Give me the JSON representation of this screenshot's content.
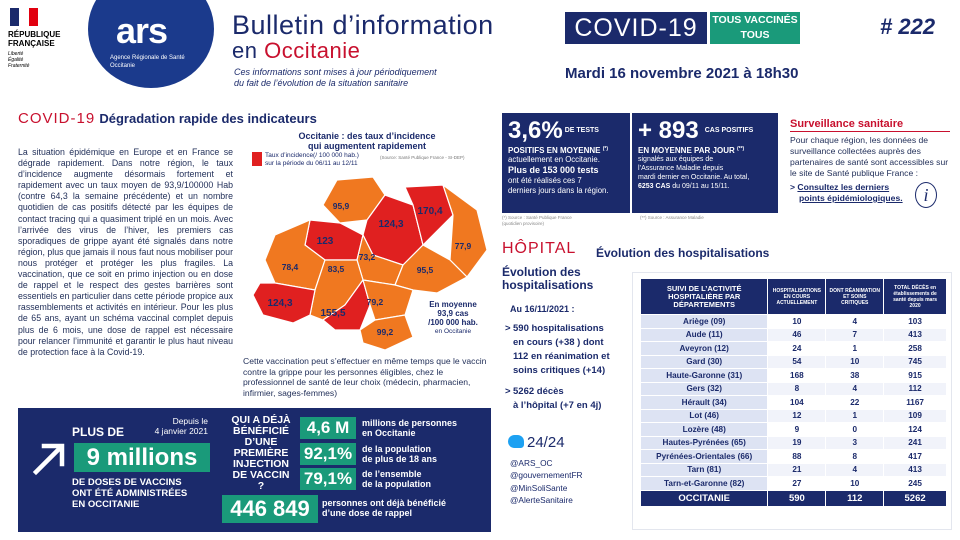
{
  "header": {
    "rf_lines": [
      "RÉPUBLIQUE",
      "FRANÇAISE",
      "Liberté",
      "Égalité",
      "Fraternité"
    ],
    "ars_logo": "ars",
    "ars_sub_lines": [
      "Agence Régionale de Santé",
      "Occitanie"
    ],
    "title": "Bulletin d’information",
    "covid_label": "COVID-19",
    "vacc_line1": "TOUS VACCINÉS",
    "vacc_line2": "TOUS PROTÉGÉS",
    "issue": "# 222",
    "region_prefix": "en",
    "region": "Occitanie",
    "note_line1": "Ces informations sont mises à jour périodiquement",
    "note_line2": "du fait de l’évolution de la situation sanitaire",
    "date": "Mardi 16 novembre 2021 à 18h30"
  },
  "left": {
    "title_covid": "COVID-19",
    "title_rest": "Dégradation rapide des indicateurs",
    "paragraph": "La situation épidémique en Europe et en France se dégrade rapidement. Dans notre région, le taux d’incidence augmente désormais fortement et rapidement avec un taux moyen de 93,9/100000 Hab (contre 64,3 la semaine précédente) et un nombre quotidien de cas positifs détecté par les équipes de contact tracing qui a quasiment triplé en un mois. Avec l’arrivée des virus de l’hiver, les premiers cas sporadiques de grippe ayant été signalés dans notre région, plus que jamais il nous faut nous mobiliser pour nous protéger et protéger les plus fragiles. La vaccination, que ce soit en primo injection ou en dose de rappel et le respect des gestes barrières sont essentiels en particulier dans cette période propice aux rassemblements et activités en intérieur. Pour les plus de 65 ans, ayant un schéma vaccinal complet depuis plus de 6 mois, une dose de rappel est nécessaire pour relancer l’immunité et garantir le plus haut niveau de protection face à la Covid-19.",
    "vacc_paragraph": "Cette vaccination peut s’effectuer en même temps que le vaccin contre la grippe pour les personnes éligibles, chez le professionnel de santé de leur choix (médecin, pharmacien, infirmier, sages-femmes)"
  },
  "map": {
    "title_line1": "Occitanie : des taux d’incidence",
    "title_line2": "qui augmentent rapidement",
    "legend_line1": "Taux d’incidence(/ 100 000 hab.)",
    "legend_line2": "sur la période du 06/11 au 12/11",
    "source": "(Source: Santé Publique France - SI-DEP)",
    "avg_line1": "En moyenne",
    "avg_line2": "93,9 cas",
    "avg_line3": "/100 000 hab.",
    "avg_line4": "en Occitanie",
    "labels": [
      "95,9",
      "124,3",
      "170,4",
      "123",
      "77,9",
      "73,2",
      "78,4",
      "83,5",
      "95,5",
      "124,3",
      "155,5",
      "79,2",
      "99,2"
    ],
    "colors": {
      "high": "#e02020",
      "mid": "#f07820",
      "low": "#f5a040"
    }
  },
  "vaccination": {
    "plus_de": "PLUS DE",
    "since_line1": "Depuis le",
    "since_line2": "4 janvier 2021",
    "nine_million": "9 millions",
    "doses_line1": "DE DOSES DE VACCINS",
    "doses_line2": "ONT ÉTÉ ADMINISTRÉES",
    "doses_line3": "EN OCCITANIE",
    "question_lines": [
      "QUI A DÉJÀ",
      "BÉNÉFICIÉ",
      "D’UNE",
      "PREMIÈRE",
      "INJECTION",
      "DE VACCIN ?"
    ],
    "stats": [
      {
        "value": "4,6 M",
        "line1": "millions de personnes",
        "line2": "en Occitanie"
      },
      {
        "value": "92,1%",
        "line1": "de la population",
        "line2": "de plus de 18 ans"
      },
      {
        "value": "79,1%",
        "line1": "de l’ensemble",
        "line2": "de la population"
      }
    ],
    "rappel_value": "446 849",
    "rappel_line1": "personnes ont déjà bénéficié",
    "rappel_line2": "d’une dose de rappel"
  },
  "kpi": {
    "tests_value": "3,6%",
    "tests_unit": "DE TESTS",
    "tests_sub": "POSITIFS EN MOYENNE",
    "tests_sub_mark": "(*)",
    "tests_line1": "actuellement en Occitanie.",
    "tests_bold1": "Plus de 153 000 tests",
    "tests_bold2": "ont été réalisés ces 7",
    "tests_bold3": "derniers jours dans la région.",
    "cases_value": "+ 893",
    "cases_unit": "CAS POSITIFS",
    "cases_sub": "EN MOYENNE PAR JOUR",
    "cases_sub_mark": "(**)",
    "cases_line1": "signalés aux équipes de",
    "cases_line2": "l’Assurance Maladie depuis",
    "cases_line3": "mardi dernier en Occitanie. Au total,",
    "cases_bold": "6253 CAS",
    "cases_line4": "du 09/11 au 15/11.",
    "src1_line1": "(*) Source : Santé Publique France",
    "src1_line2": "(quotidien provisoire)",
    "src2": "(**) Source : Assurance Maladie"
  },
  "surveillance": {
    "title": "Surveillance sanitaire",
    "text": "Pour chaque région, les données de surveillance collectées auprès des partenaires de santé sont accessibles sur le site de Santé publique France :",
    "link_prefix": ">",
    "link_line1": "Consultez les derniers",
    "link_line2": "points épidémiologiques.",
    "info_icon": "i"
  },
  "hospital": {
    "title": "HÔPITAL",
    "subtitle": "Évolution des hospitalisations",
    "evol_line1": "Évolution des",
    "evol_line2": "hospitalisations",
    "date": "Au 16/11/2021 :",
    "bullet1_lines": [
      "590 hospitalisations",
      "en cours (+38 ) dont",
      "112 en réanimation et",
      "soins critiques (+14)"
    ],
    "bullet2_lines": [
      "5262 décès",
      "à l’hôpital (+7 en 4j)"
    ]
  },
  "twitter": {
    "handle_title": "24/24",
    "links": [
      "@ARS_OC",
      "@gouvernementFR",
      "@MinSoliSante",
      "@AlerteSanitaire"
    ]
  },
  "table": {
    "headers": [
      "SUIVI DE L’ACTIVITÉ HOSPITALIÈRE PAR DÉPARTEMENTS",
      "HOSPITALISATIONS EN COURS ACTUELLEMENT",
      "DONT RÉANIMATION ET SOINS CRITIQUES",
      "TOTAL DÉCÈS en établissements de santé depuis mars 2020"
    ],
    "rows": [
      [
        "Ariège (09)",
        "10",
        "4",
        "103"
      ],
      [
        "Aude (11)",
        "46",
        "7",
        "413"
      ],
      [
        "Aveyron (12)",
        "24",
        "1",
        "258"
      ],
      [
        "Gard (30)",
        "54",
        "10",
        "745"
      ],
      [
        "Haute-Garonne (31)",
        "168",
        "38",
        "915"
      ],
      [
        "Gers (32)",
        "8",
        "4",
        "112"
      ],
      [
        "Hérault (34)",
        "104",
        "22",
        "1167"
      ],
      [
        "Lot (46)",
        "12",
        "1",
        "109"
      ],
      [
        "Lozère (48)",
        "9",
        "0",
        "124"
      ],
      [
        "Hautes-Pyrénées (65)",
        "19",
        "3",
        "241"
      ],
      [
        "Pyrénées-Orientales (66)",
        "88",
        "8",
        "417"
      ],
      [
        "Tarn (81)",
        "21",
        "4",
        "413"
      ],
      [
        "Tarn-et-Garonne (82)",
        "27",
        "10",
        "245"
      ]
    ],
    "total": [
      "OCCITANIE",
      "590",
      "112",
      "5262"
    ]
  },
  "colors": {
    "navy": "#1b2a6b",
    "red": "#c8102e",
    "green": "#1a9a7a"
  }
}
